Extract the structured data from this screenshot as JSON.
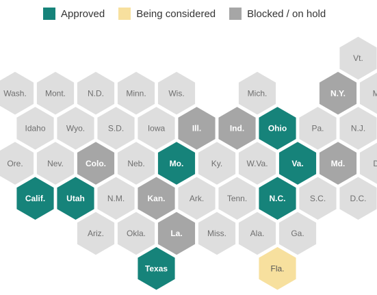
{
  "legend": {
    "approved": {
      "label": "Approved",
      "color": "#16837a"
    },
    "considered": {
      "label": "Being considered",
      "color": "#f7e09e"
    },
    "blocked": {
      "label": "Blocked / on hold",
      "color": "#a6a6a6"
    }
  },
  "colors": {
    "none": "#dedede",
    "label_light": "#ffffff",
    "label_dark": "#6f6f6f",
    "label_considered": "#555555"
  },
  "states": [
    {
      "label": "Vt.",
      "row": 0,
      "col": 8.5,
      "status": "none"
    },
    {
      "label": "Wash.",
      "row": 1,
      "col": 0,
      "status": "none"
    },
    {
      "label": "Mont.",
      "row": 1,
      "col": 1,
      "status": "none"
    },
    {
      "label": "N.D.",
      "row": 1,
      "col": 2,
      "status": "none"
    },
    {
      "label": "Minn.",
      "row": 1,
      "col": 3,
      "status": "none"
    },
    {
      "label": "Wis.",
      "row": 1,
      "col": 4,
      "status": "none"
    },
    {
      "label": "Mich.",
      "row": 1,
      "col": 6,
      "status": "none"
    },
    {
      "label": "N.Y.",
      "row": 1,
      "col": 8,
      "status": "blocked"
    },
    {
      "label": "Ma",
      "row": 1,
      "col": 9,
      "status": "none"
    },
    {
      "label": "Idaho",
      "row": 2,
      "col": 0.5,
      "status": "none"
    },
    {
      "label": "Wyo.",
      "row": 2,
      "col": 1.5,
      "status": "none"
    },
    {
      "label": "S.D.",
      "row": 2,
      "col": 2.5,
      "status": "none"
    },
    {
      "label": "Iowa",
      "row": 2,
      "col": 3.5,
      "status": "none"
    },
    {
      "label": "Ill.",
      "row": 2,
      "col": 4.5,
      "status": "blocked"
    },
    {
      "label": "Ind.",
      "row": 2,
      "col": 5.5,
      "status": "blocked"
    },
    {
      "label": "Ohio",
      "row": 2,
      "col": 6.5,
      "status": "approved"
    },
    {
      "label": "Pa.",
      "row": 2,
      "col": 7.5,
      "status": "none"
    },
    {
      "label": "N.J.",
      "row": 2,
      "col": 8.5,
      "status": "none"
    },
    {
      "label": "Ore.",
      "row": 3,
      "col": 0,
      "status": "none"
    },
    {
      "label": "Nev.",
      "row": 3,
      "col": 1,
      "status": "none"
    },
    {
      "label": "Colo.",
      "row": 3,
      "col": 2,
      "status": "blocked"
    },
    {
      "label": "Neb.",
      "row": 3,
      "col": 3,
      "status": "none"
    },
    {
      "label": "Mo.",
      "row": 3,
      "col": 4,
      "status": "approved"
    },
    {
      "label": "Ky.",
      "row": 3,
      "col": 5,
      "status": "none"
    },
    {
      "label": "W.Va.",
      "row": 3,
      "col": 6,
      "status": "none"
    },
    {
      "label": "Va.",
      "row": 3,
      "col": 7,
      "status": "approved"
    },
    {
      "label": "Md.",
      "row": 3,
      "col": 8,
      "status": "blocked"
    },
    {
      "label": "De",
      "row": 3,
      "col": 9,
      "status": "none"
    },
    {
      "label": "Calif.",
      "row": 4,
      "col": 0.5,
      "status": "approved"
    },
    {
      "label": "Utah",
      "row": 4,
      "col": 1.5,
      "status": "approved"
    },
    {
      "label": "N.M.",
      "row": 4,
      "col": 2.5,
      "status": "none"
    },
    {
      "label": "Kan.",
      "row": 4,
      "col": 3.5,
      "status": "blocked"
    },
    {
      "label": "Ark.",
      "row": 4,
      "col": 4.5,
      "status": "none"
    },
    {
      "label": "Tenn.",
      "row": 4,
      "col": 5.5,
      "status": "none"
    },
    {
      "label": "N.C.",
      "row": 4,
      "col": 6.5,
      "status": "approved"
    },
    {
      "label": "S.C.",
      "row": 4,
      "col": 7.5,
      "status": "none"
    },
    {
      "label": "D.C.",
      "row": 4,
      "col": 8.5,
      "status": "none"
    },
    {
      "label": "Ariz.",
      "row": 5,
      "col": 2,
      "status": "none"
    },
    {
      "label": "Okla.",
      "row": 5,
      "col": 3,
      "status": "none"
    },
    {
      "label": "La.",
      "row": 5,
      "col": 4,
      "status": "blocked"
    },
    {
      "label": "Miss.",
      "row": 5,
      "col": 5,
      "status": "none"
    },
    {
      "label": "Ala.",
      "row": 5,
      "col": 6,
      "status": "none"
    },
    {
      "label": "Ga.",
      "row": 5,
      "col": 7,
      "status": "none"
    },
    {
      "label": "Texas",
      "row": 6,
      "col": 3.5,
      "status": "approved"
    },
    {
      "label": "Fla.",
      "row": 6,
      "col": 6.5,
      "status": "considered"
    }
  ]
}
